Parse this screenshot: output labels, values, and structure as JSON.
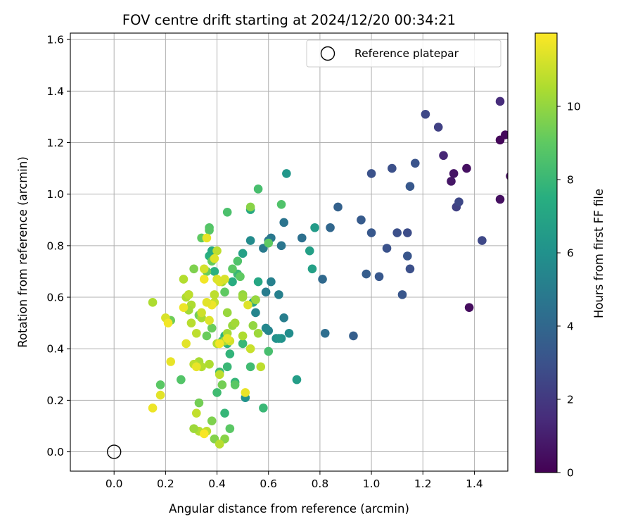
{
  "chart_data": {
    "type": "scatter",
    "title": "FOV centre drift starting at 2024/12/20 00:34:21",
    "xlabel": "Angular distance from reference (arcmin)",
    "ylabel": "Rotation from reference (arcmin)",
    "xlim": [
      -0.17,
      1.53
    ],
    "ylim": [
      -0.075,
      1.625
    ],
    "xticks": [
      "0.0",
      "0.2",
      "0.4",
      "0.6",
      "0.8",
      "1.0",
      "1.2",
      "1.4"
    ],
    "yticks": [
      "0.0",
      "0.2",
      "0.4",
      "0.6",
      "0.8",
      "1.0",
      "1.2",
      "1.4",
      "1.6"
    ],
    "grid": true,
    "legend": {
      "position": "top-right",
      "entries": [
        "Reference platepar"
      ]
    },
    "colorbar": {
      "label": "Hours from first FF file",
      "colormap": "viridis",
      "range": [
        0,
        12
      ],
      "ticks": [
        "0",
        "2",
        "4",
        "6",
        "8",
        "10"
      ]
    },
    "reference_point": {
      "x": 0.0,
      "y": 0.0,
      "name": "Reference platepar"
    },
    "series": [
      {
        "x": [
          1.5,
          1.52,
          1.54,
          1.32,
          1.31,
          1.37,
          1.38,
          1.5,
          1.28
        ],
        "y": [
          1.21,
          1.23,
          1.07,
          1.08,
          1.05,
          1.1,
          0.56,
          0.98,
          1.15
        ],
        "hours": [
          0.2,
          0.3,
          0.4,
          0.6,
          0.7,
          0.5,
          0.4,
          0.5,
          1.3
        ]
      },
      {
        "x": [
          1.5,
          1.26,
          1.21,
          1.33,
          1.34,
          1.43,
          1.14,
          1.15,
          1.1,
          1.17,
          1.08,
          1.0,
          1.06,
          1.12,
          1.14,
          1.15,
          1.03,
          0.98,
          0.96,
          1.0,
          0.93
        ],
        "y": [
          1.36,
          1.26,
          1.31,
          0.95,
          0.97,
          0.82,
          0.85,
          0.71,
          0.85,
          1.12,
          1.1,
          1.08,
          0.79,
          0.61,
          0.76,
          1.03,
          0.68,
          0.69,
          0.9,
          0.85,
          0.45
        ],
        "hours": [
          1.5,
          2.3,
          2.6,
          2.3,
          2.6,
          2.6,
          2.8,
          2.9,
          2.9,
          3.1,
          2.9,
          3.0,
          3.0,
          3.2,
          3.2,
          3.3,
          3.3,
          3.5,
          3.4,
          3.3,
          3.6
        ]
      },
      {
        "x": [
          0.87,
          0.84,
          0.81,
          0.82,
          0.73,
          0.66,
          0.65,
          0.61,
          0.6,
          0.58,
          0.59,
          0.66,
          0.61,
          0.64,
          0.6,
          0.55,
          0.59,
          0.53,
          0.68,
          0.63,
          0.65,
          0.67,
          0.51,
          0.64,
          0.71
        ],
        "y": [
          0.95,
          0.87,
          0.67,
          0.46,
          0.83,
          0.89,
          0.8,
          0.83,
          0.82,
          0.79,
          0.62,
          0.52,
          0.66,
          0.61,
          0.47,
          0.54,
          0.48,
          0.82,
          0.46,
          0.44,
          0.44,
          1.08,
          0.21,
          0.44,
          0.28
        ],
        "hours": [
          3.7,
          4.0,
          4.1,
          4.3,
          4.4,
          4.6,
          4.7,
          4.8,
          4.8,
          4.9,
          5.0,
          5.1,
          5.2,
          5.2,
          5.3,
          5.4,
          5.5,
          5.7,
          5.8,
          5.9,
          6.0,
          6.3,
          6.1,
          6.2,
          6.6
        ]
      },
      {
        "x": [
          0.78,
          0.76,
          0.77,
          0.5,
          0.56,
          0.55,
          0.54,
          0.53,
          0.46,
          0.37,
          0.38,
          0.39,
          0.43,
          0.44,
          0.45,
          0.47,
          0.48,
          0.5,
          0.43,
          0.4,
          0.44,
          0.41,
          0.42,
          0.58,
          0.6,
          0.53
        ],
        "y": [
          0.87,
          0.78,
          0.71,
          0.77,
          0.66,
          0.59,
          0.58,
          0.94,
          0.66,
          0.76,
          0.78,
          0.7,
          0.45,
          0.42,
          0.38,
          0.27,
          0.69,
          0.42,
          0.15,
          0.23,
          0.33,
          0.31,
          0.43,
          0.17,
          0.39,
          0.33
        ],
        "hours": [
          6.5,
          6.7,
          6.8,
          6.8,
          7.1,
          7.2,
          7.1,
          7.2,
          7.4,
          7.5,
          7.3,
          7.6,
          7.7,
          7.8,
          7.8,
          7.9,
          8.0,
          8.0,
          7.9,
          8.2,
          8.0,
          8.1,
          8.3,
          8.0,
          8.4,
          8.2
        ]
      },
      {
        "x": [
          0.56,
          0.65,
          0.6,
          0.44,
          0.37,
          0.37,
          0.34,
          0.38,
          0.36,
          0.48,
          0.46,
          0.43,
          0.49,
          0.38,
          0.33,
          0.26,
          0.22,
          0.18,
          0.29,
          0.31,
          0.39,
          0.43,
          0.45,
          0.36,
          0.42,
          0.33,
          0.47,
          0.38
        ],
        "y": [
          1.02,
          0.96,
          0.81,
          0.93,
          0.87,
          0.86,
          0.83,
          0.74,
          0.7,
          0.74,
          0.71,
          0.62,
          0.68,
          0.48,
          0.53,
          0.28,
          0.51,
          0.26,
          0.61,
          0.71,
          0.05,
          0.05,
          0.09,
          0.45,
          0.26,
          0.19,
          0.26,
          0.12
        ],
        "hours": [
          8.4,
          8.6,
          9.0,
          8.5,
          8.7,
          8.8,
          9.0,
          9.1,
          9.2,
          8.6,
          8.9,
          9.0,
          9.0,
          9.2,
          9.4,
          8.7,
          9.3,
          8.9,
          9.5,
          9.6,
          9.7,
          9.8,
          8.9,
          9.2,
          9.4,
          9.4,
          8.9,
          9.6
        ]
      },
      {
        "x": [
          0.53,
          0.5,
          0.5,
          0.55,
          0.54,
          0.56,
          0.46,
          0.44,
          0.47,
          0.5,
          0.42,
          0.42,
          0.44,
          0.43,
          0.4,
          0.37,
          0.33,
          0.34,
          0.31,
          0.28,
          0.27,
          0.3,
          0.32,
          0.34,
          0.3,
          0.29,
          0.15,
          0.32,
          0.36,
          0.33,
          0.39,
          0.41,
          0.57,
          0.53,
          0.41,
          0.31,
          0.29,
          0.39,
          0.4
        ],
        "y": [
          0.95,
          0.61,
          0.6,
          0.59,
          0.49,
          0.46,
          0.49,
          0.46,
          0.5,
          0.45,
          0.66,
          0.66,
          0.54,
          0.43,
          0.42,
          0.34,
          0.35,
          0.33,
          0.34,
          0.6,
          0.67,
          0.5,
          0.46,
          0.52,
          0.57,
          0.61,
          0.58,
          0.15,
          0.08,
          0.08,
          0.58,
          0.03,
          0.33,
          0.4,
          0.3,
          0.09,
          0.55,
          0.61,
          0.78
        ],
        "hours": [
          9.8,
          10.0,
          10.2,
          10.1,
          10.0,
          10.2,
          10.1,
          10.3,
          10.3,
          10.5,
          10.5,
          10.3,
          10.1,
          10.4,
          10.6,
          10.5,
          10.4,
          10.6,
          10.8,
          10.5,
          10.6,
          10.7,
          10.8,
          10.4,
          10.5,
          10.8,
          10.5,
          10.9,
          10.8,
          10.6,
          10.9,
          10.7,
          10.8,
          11.0,
          10.8,
          10.2,
          10.3,
          10.8,
          10.8
        ]
      },
      {
        "x": [
          0.36,
          0.35,
          0.39,
          0.38,
          0.4,
          0.41,
          0.43,
          0.45,
          0.44,
          0.38,
          0.35,
          0.36,
          0.37,
          0.34,
          0.32,
          0.27,
          0.28,
          0.2,
          0.21,
          0.22,
          0.15,
          0.18,
          0.51,
          0.52,
          0.41,
          0.35
        ],
        "y": [
          0.83,
          0.71,
          0.75,
          0.57,
          0.67,
          0.66,
          0.67,
          0.43,
          0.44,
          0.57,
          0.67,
          0.58,
          0.51,
          0.54,
          0.33,
          0.56,
          0.42,
          0.52,
          0.5,
          0.35,
          0.17,
          0.22,
          0.23,
          0.57,
          0.42,
          0.07
        ],
        "hours": [
          11.6,
          11.2,
          11.4,
          11.7,
          11.3,
          11.4,
          11.3,
          11.2,
          11.6,
          11.7,
          11.8,
          11.5,
          11.4,
          11.1,
          11.6,
          11.7,
          11.5,
          11.3,
          11.8,
          11.6,
          11.7,
          11.5,
          11.6,
          11.4,
          11.8,
          11.9
        ]
      }
    ]
  }
}
